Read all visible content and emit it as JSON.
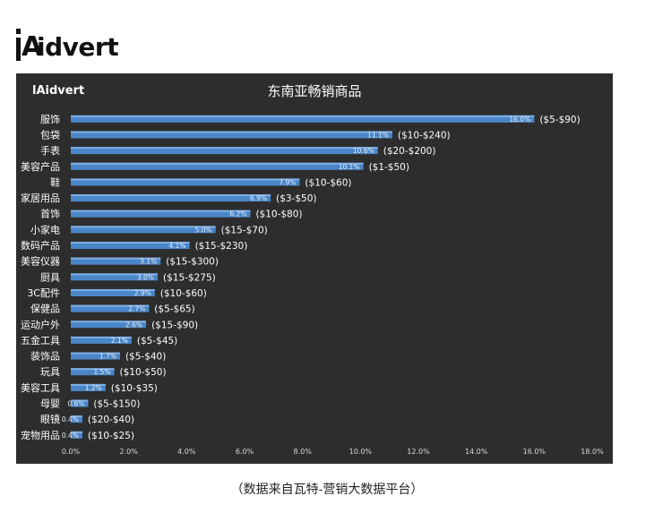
{
  "brand": {
    "logo_text": "idvert",
    "mini_logo_text": "idvert"
  },
  "caption": "（数据来自瓦特-营销大数据平台）",
  "chart_data": {
    "type": "bar",
    "orientation": "horizontal",
    "title": "东南亚畅销商品",
    "categories": [
      "服饰",
      "包袋",
      "手表",
      "美容产品",
      "鞋",
      "家居用品",
      "首饰",
      "小家电",
      "数码产品",
      "美容仪器",
      "厨具",
      "3C配件",
      "保健品",
      "运动户外",
      "五金工具",
      "装饰品",
      "玩具",
      "美容工具",
      "母婴",
      "眼镜",
      "宠物用品"
    ],
    "values": [
      16.0,
      11.1,
      10.6,
      10.1,
      7.9,
      6.9,
      6.2,
      5.0,
      4.1,
      3.1,
      3.0,
      2.9,
      2.7,
      2.6,
      2.1,
      1.7,
      1.5,
      1.2,
      0.6,
      0.4,
      0.4
    ],
    "value_labels": [
      "16.0%",
      "11.1%",
      "10.6%",
      "10.1%",
      "7.9%",
      "6.9%",
      "6.2%",
      "5.0%",
      "4.1%",
      "3.1%",
      "3.0%",
      "2.9%",
      "2.7%",
      "2.6%",
      "2.1%",
      "1.7%",
      "1.5%",
      "1.2%",
      "0.6%",
      "0.4%",
      "0.4%"
    ],
    "price_ranges": [
      "($5-$90)",
      "($10-$240)",
      "($20-$200)",
      "($1-$50)",
      "($10-$60)",
      "($3-$50)",
      "($10-$80)",
      "($15-$70)",
      "($15-$230)",
      "($15-$300)",
      "($15-$275)",
      "($10-$60)",
      "($5-$65)",
      "($15-$90)",
      "($5-$45)",
      "($5-$40)",
      "($10-$50)",
      "($10-$35)",
      "($5-$150)",
      "($20-$40)",
      "($10-$25)"
    ],
    "xlim": [
      0,
      18
    ],
    "xticks": [
      "0.0%",
      "2.0%",
      "4.0%",
      "6.0%",
      "8.0%",
      "10.0%",
      "12.0%",
      "14.0%",
      "16.0%",
      "18.0%"
    ],
    "grid": false,
    "colors": {
      "background": "#2d2d2d",
      "bar": "#4a86c8",
      "bar_highlight": "#7fb0e6",
      "text": "#ffffff",
      "value_label": "#e6eef8"
    }
  }
}
